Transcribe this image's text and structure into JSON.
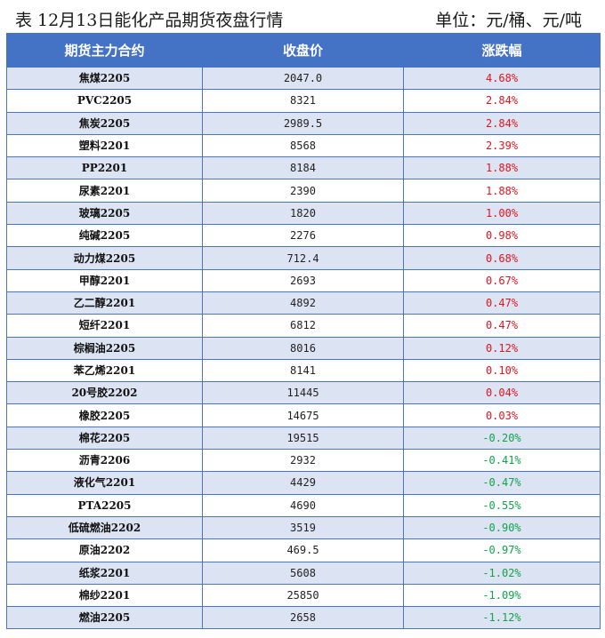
{
  "title": "表  12月13日能化产品期货夜盘行情",
  "unit": "单位：元/桶、元/吨",
  "colors": {
    "header_bg": "#4472c4",
    "stripe": "#dce3f2",
    "up": "#e0141e",
    "down": "#10a34a"
  },
  "headers": [
    "期货主力合约",
    "收盘价",
    "涨跌幅"
  ],
  "rows": [
    {
      "name": "焦煤2205",
      "price": "2047.0",
      "change": "4.68%",
      "dir": "up"
    },
    {
      "name": "PVC2205",
      "price": "8321",
      "change": "2.84%",
      "dir": "up"
    },
    {
      "name": "焦炭2205",
      "price": "2989.5",
      "change": "2.84%",
      "dir": "up"
    },
    {
      "name": "塑料2201",
      "price": "8568",
      "change": "2.39%",
      "dir": "up"
    },
    {
      "name": "PP2201",
      "price": "8184",
      "change": "1.88%",
      "dir": "up"
    },
    {
      "name": "尿素2201",
      "price": "2390",
      "change": "1.88%",
      "dir": "up"
    },
    {
      "name": "玻璃2205",
      "price": "1820",
      "change": "1.00%",
      "dir": "up"
    },
    {
      "name": "纯碱2205",
      "price": "2276",
      "change": "0.98%",
      "dir": "up"
    },
    {
      "name": "动力煤2205",
      "price": "712.4",
      "change": "0.68%",
      "dir": "up"
    },
    {
      "name": "甲醇2201",
      "price": "2693",
      "change": "0.67%",
      "dir": "up"
    },
    {
      "name": "乙二醇2201",
      "price": "4892",
      "change": "0.47%",
      "dir": "up"
    },
    {
      "name": "短纤2201",
      "price": "6812",
      "change": "0.47%",
      "dir": "up"
    },
    {
      "name": "棕榈油2205",
      "price": "8016",
      "change": "0.12%",
      "dir": "up"
    },
    {
      "name": "苯乙烯2201",
      "price": "8141",
      "change": "0.10%",
      "dir": "up"
    },
    {
      "name": "20号胶2202",
      "price": "11445",
      "change": "0.04%",
      "dir": "up"
    },
    {
      "name": "橡胶2205",
      "price": "14675",
      "change": "0.03%",
      "dir": "up"
    },
    {
      "name": "棉花2205",
      "price": "19515",
      "change": "-0.20%",
      "dir": "down"
    },
    {
      "name": "沥青2206",
      "price": "2932",
      "change": "-0.41%",
      "dir": "down"
    },
    {
      "name": "液化气2201",
      "price": "4429",
      "change": "-0.47%",
      "dir": "down"
    },
    {
      "name": "PTA2205",
      "price": "4690",
      "change": "-0.55%",
      "dir": "down"
    },
    {
      "name": "低硫燃油2202",
      "price": "3519",
      "change": "-0.90%",
      "dir": "down"
    },
    {
      "name": "原油2202",
      "price": "469.5",
      "change": "-0.97%",
      "dir": "down"
    },
    {
      "name": "纸浆2201",
      "price": "5608",
      "change": "-1.02%",
      "dir": "down"
    },
    {
      "name": "棉纱2201",
      "price": "25850",
      "change": "-1.09%",
      "dir": "down"
    },
    {
      "name": "燃油2205",
      "price": "2658",
      "change": "-1.12%",
      "dir": "down"
    }
  ]
}
